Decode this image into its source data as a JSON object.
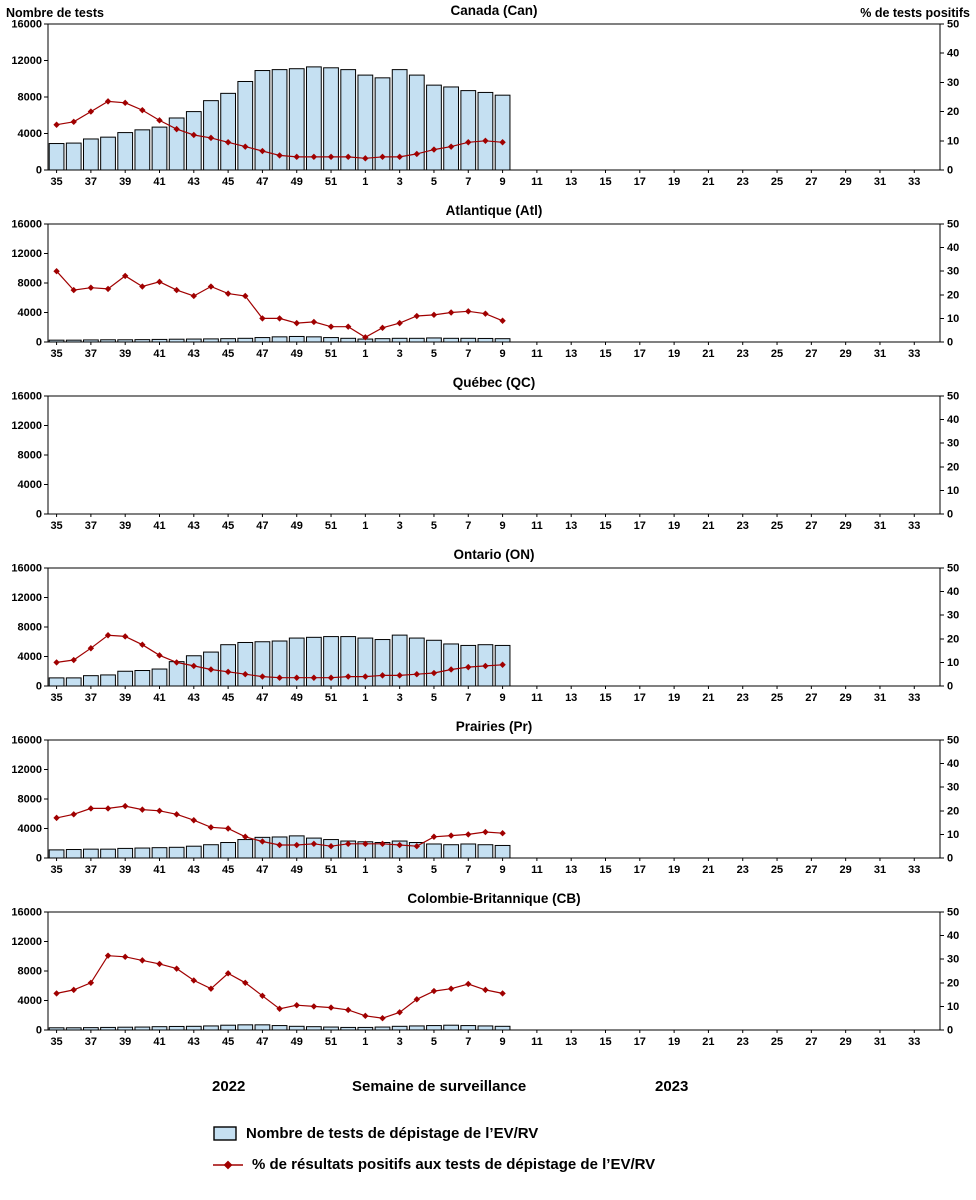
{
  "page": {
    "left_axis_title": "Nombre de tests",
    "right_axis_title": "% de tests positifs",
    "x_axis_title": "Semaine de surveillance",
    "year_left": "2022",
    "year_right": "2023",
    "legend": [
      {
        "swatch": "bar",
        "label": "Nombre de tests de dépistage de l’EV/RV"
      },
      {
        "swatch": "line",
        "label": "% de résultats positifs aux tests de dépistage de l’EV/RV"
      }
    ],
    "colors": {
      "bar_fill": "#c5e0f2",
      "bar_stroke": "#000000",
      "line": "#a00000",
      "axis": "#000000"
    }
  },
  "axes": {
    "weeks": [
      35,
      36,
      37,
      38,
      39,
      40,
      41,
      42,
      43,
      44,
      45,
      46,
      47,
      48,
      49,
      50,
      51,
      52,
      1,
      2,
      3,
      4,
      5,
      6,
      7,
      8,
      9,
      10,
      11,
      12,
      13,
      14,
      15,
      16,
      17,
      18,
      19,
      20,
      21,
      22,
      23,
      24,
      25,
      26,
      27,
      28,
      29,
      30,
      31,
      32,
      33,
      34
    ],
    "left_ticks": [
      0,
      4000,
      8000,
      12000,
      16000
    ],
    "right_ticks": [
      0,
      10,
      20,
      30,
      40,
      50
    ],
    "left_max": 16000,
    "right_max": 50
  },
  "chart_data": [
    {
      "type": "bar+line",
      "title": "Canada (Can)",
      "bar_series": "Nombre de tests de dépistage de l’EV/RV",
      "line_series": "% de résultats positifs",
      "bars": [
        2900,
        2950,
        3400,
        3600,
        4100,
        4400,
        4700,
        5700,
        6400,
        7600,
        8400,
        9700,
        10900,
        11000,
        11100,
        11300,
        11200,
        11000,
        10400,
        10100,
        11000,
        10400,
        9300,
        9100,
        8700,
        8500,
        8200
      ],
      "line": [
        15.5,
        16.5,
        20,
        23.5,
        23,
        20.5,
        17,
        14,
        12,
        11,
        9.5,
        8,
        6.5,
        5,
        4.5,
        4.5,
        4.5,
        4.5,
        4,
        4.5,
        4.5,
        5.5,
        7,
        8,
        9.5,
        10,
        9.5
      ]
    },
    {
      "type": "bar+line",
      "title": "Atlantique (Atl)",
      "bar_series": "Nombre de tests de dépistage de l’EV/RV",
      "line_series": "% de résultats positifs",
      "bars": [
        250,
        250,
        280,
        300,
        300,
        320,
        350,
        380,
        400,
        420,
        450,
        500,
        600,
        700,
        750,
        700,
        600,
        500,
        400,
        450,
        500,
        500,
        550,
        500,
        500,
        480,
        450
      ],
      "line": [
        30,
        22,
        23,
        22.5,
        28,
        23.5,
        25.5,
        22,
        19.5,
        23.5,
        20.5,
        19.5,
        10,
        10,
        8,
        8.5,
        6.5,
        6.5,
        2,
        6,
        8,
        11,
        11.5,
        12.5,
        13,
        12,
        9
      ]
    },
    {
      "type": "bar+line",
      "title": "Québec (QC)",
      "bar_series": "Nombre de tests de dépistage de l’EV/RV",
      "line_series": "% de résultats positifs",
      "bars": [],
      "line": []
    },
    {
      "type": "bar+line",
      "title": "Ontario (ON)",
      "bar_series": "Nombre de tests de dépistage de l’EV/RV",
      "line_series": "% de résultats positifs",
      "bars": [
        1100,
        1100,
        1400,
        1500,
        2000,
        2100,
        2300,
        3300,
        4100,
        4600,
        5600,
        5900,
        6000,
        6100,
        6500,
        6600,
        6700,
        6700,
        6500,
        6300,
        6900,
        6500,
        6200,
        5700,
        5500,
        5600,
        5500
      ],
      "line": [
        10,
        11,
        16,
        21.5,
        21,
        17.5,
        13,
        10,
        8.5,
        7,
        6,
        5,
        4,
        3.5,
        3.5,
        3.5,
        3.5,
        4,
        4,
        4.5,
        4.5,
        5,
        5.5,
        7,
        8,
        8.5,
        9
      ]
    },
    {
      "type": "bar+line",
      "title": "Prairies (Pr)",
      "bar_series": "Nombre de tests de dépistage de l’EV/RV",
      "line_series": "% de résultats positifs",
      "bars": [
        1100,
        1150,
        1200,
        1200,
        1300,
        1350,
        1400,
        1450,
        1600,
        1800,
        2100,
        2500,
        2800,
        2850,
        3000,
        2700,
        2500,
        2300,
        2200,
        2100,
        2300,
        2100,
        1900,
        1800,
        1900,
        1800,
        1700
      ],
      "line": [
        17,
        18.5,
        21,
        21,
        22,
        20.5,
        20,
        18.5,
        16,
        13,
        12.5,
        9,
        7,
        5.5,
        5.5,
        6,
        5,
        6,
        6,
        6,
        5.5,
        5,
        9,
        9.5,
        10,
        11,
        10.5
      ]
    },
    {
      "type": "bar+line",
      "title": "Colombie-Britannique (CB)",
      "bar_series": "Nombre de tests de dépistage de l’EV/RV",
      "line_series": "% de résultats positifs",
      "bars": [
        300,
        300,
        320,
        350,
        380,
        400,
        450,
        480,
        500,
        550,
        650,
        700,
        700,
        600,
        500,
        450,
        400,
        350,
        350,
        400,
        500,
        550,
        600,
        650,
        600,
        550,
        500
      ],
      "line": [
        15.5,
        17,
        20,
        31.5,
        31,
        29.5,
        28,
        26,
        21,
        17.5,
        24,
        20,
        14.5,
        9,
        10.5,
        10,
        9.5,
        8.5,
        6,
        5,
        7.5,
        13,
        16.5,
        17.5,
        19.5,
        17,
        15.5
      ]
    }
  ]
}
